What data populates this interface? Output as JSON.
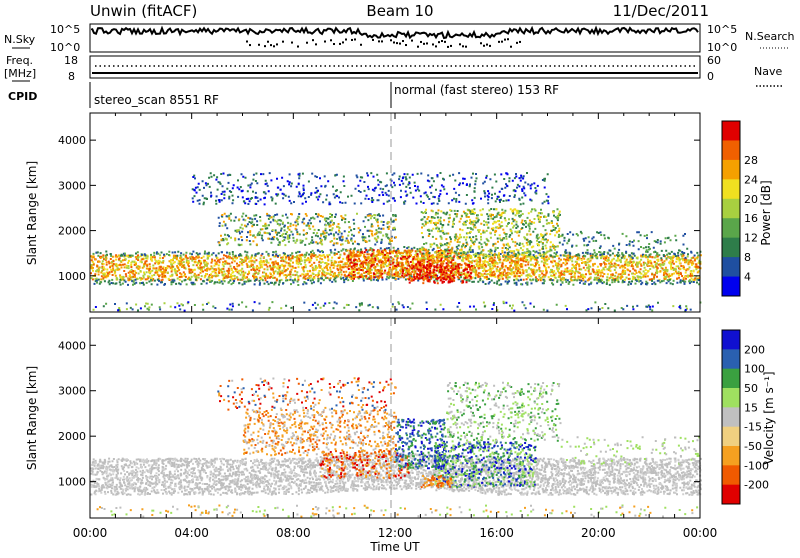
{
  "header": {
    "title": "Unwin (fitACF)",
    "beam": "Beam 10",
    "date": "11/Dec/2011"
  },
  "noise_panel": {
    "left_label": "N.Sky",
    "right_label": "N.Search",
    "left_ticks": [
      "10^5",
      "10^0"
    ],
    "right_ticks": [
      "10^5",
      "10^0"
    ]
  },
  "freq_panel": {
    "left_label_1": "Freq.",
    "left_label_2": "[MHz]",
    "right_label": "Nave",
    "left_ticks": [
      "18",
      "8"
    ],
    "right_ticks": [
      "60",
      "0"
    ]
  },
  "cpid": {
    "label": "CPID",
    "mode_1": "stereo_scan 8551 RF",
    "mode_2": "normal (fast stereo) 153 RF"
  },
  "colors": {
    "power_scale": [
      "#0000ee",
      "#1f4fa0",
      "#2e7d4a",
      "#5aa64a",
      "#a8d040",
      "#f0e020",
      "#f5a000",
      "#f06000",
      "#e00000"
    ],
    "velocity_scale": [
      "#e00000",
      "#f05a00",
      "#f5a020",
      "#f0d080",
      "#c0c0c0",
      "#9fe060",
      "#3aa040",
      "#2a60b0",
      "#1010d0"
    ],
    "gray_velocity": "#bebebe"
  },
  "chart_data": [
    {
      "type": "heatmap",
      "panel": "Power",
      "ylabel": "Slant Range [km]",
      "yticks": [
        "1000",
        "2000",
        "3000",
        "4000"
      ],
      "ylim": [
        200,
        4600
      ],
      "xlim": [
        0,
        24
      ],
      "colorbar": {
        "label": "Power [dB]",
        "ticks": [
          "4",
          "8",
          "12",
          "16",
          "20",
          "24",
          "28"
        ],
        "range": [
          0,
          32
        ]
      },
      "bands": [
        {
          "t": [
            0,
            24
          ],
          "range": [
            950,
            1450
          ],
          "value": "16-24 dB"
        },
        {
          "t": [
            10,
            14
          ],
          "range": [
            900,
            1700
          ],
          "value": "24-32 dB"
        },
        {
          "t": [
            5,
            12
          ],
          "range": [
            1700,
            2300
          ],
          "value": "8-16 dB"
        },
        {
          "t": [
            13,
            18
          ],
          "range": [
            1400,
            2400
          ],
          "value": "12-24 dB"
        },
        {
          "t": [
            4,
            18
          ],
          "range": [
            2600,
            3300
          ],
          "value": "4-8 dB"
        }
      ]
    },
    {
      "type": "heatmap",
      "panel": "Velocity",
      "ylabel": "Slant Range [km]",
      "yticks": [
        "1000",
        "2000",
        "3000",
        "4000"
      ],
      "ylim": [
        200,
        4600
      ],
      "xlim": [
        0,
        24
      ],
      "colorbar": {
        "label": "Velocity [m s⁻¹]",
        "ticks": [
          "200",
          "100",
          "50",
          "15",
          "-15",
          "-50",
          "-100",
          "-200"
        ],
        "range": [
          -250,
          250
        ]
      },
      "bands": [
        {
          "t": [
            0,
            24
          ],
          "range": [
            700,
            1600
          ],
          "value": "-15 to 15 m/s (ground scatter)"
        },
        {
          "t": [
            6,
            12
          ],
          "range": [
            1700,
            2500
          ],
          "value": "-50 to -100 m/s"
        },
        {
          "t": [
            12,
            14
          ],
          "range": [
            1400,
            2300
          ],
          "value": "100 to 200 m/s"
        },
        {
          "t": [
            14,
            17.5
          ],
          "range": [
            1000,
            2000
          ],
          "value": "50 to 200 m/s"
        }
      ]
    }
  ],
  "x_axis": {
    "label": "Time UT",
    "ticks": [
      "00:00",
      "04:00",
      "08:00",
      "12:00",
      "16:00",
      "20:00",
      "00:00"
    ]
  }
}
